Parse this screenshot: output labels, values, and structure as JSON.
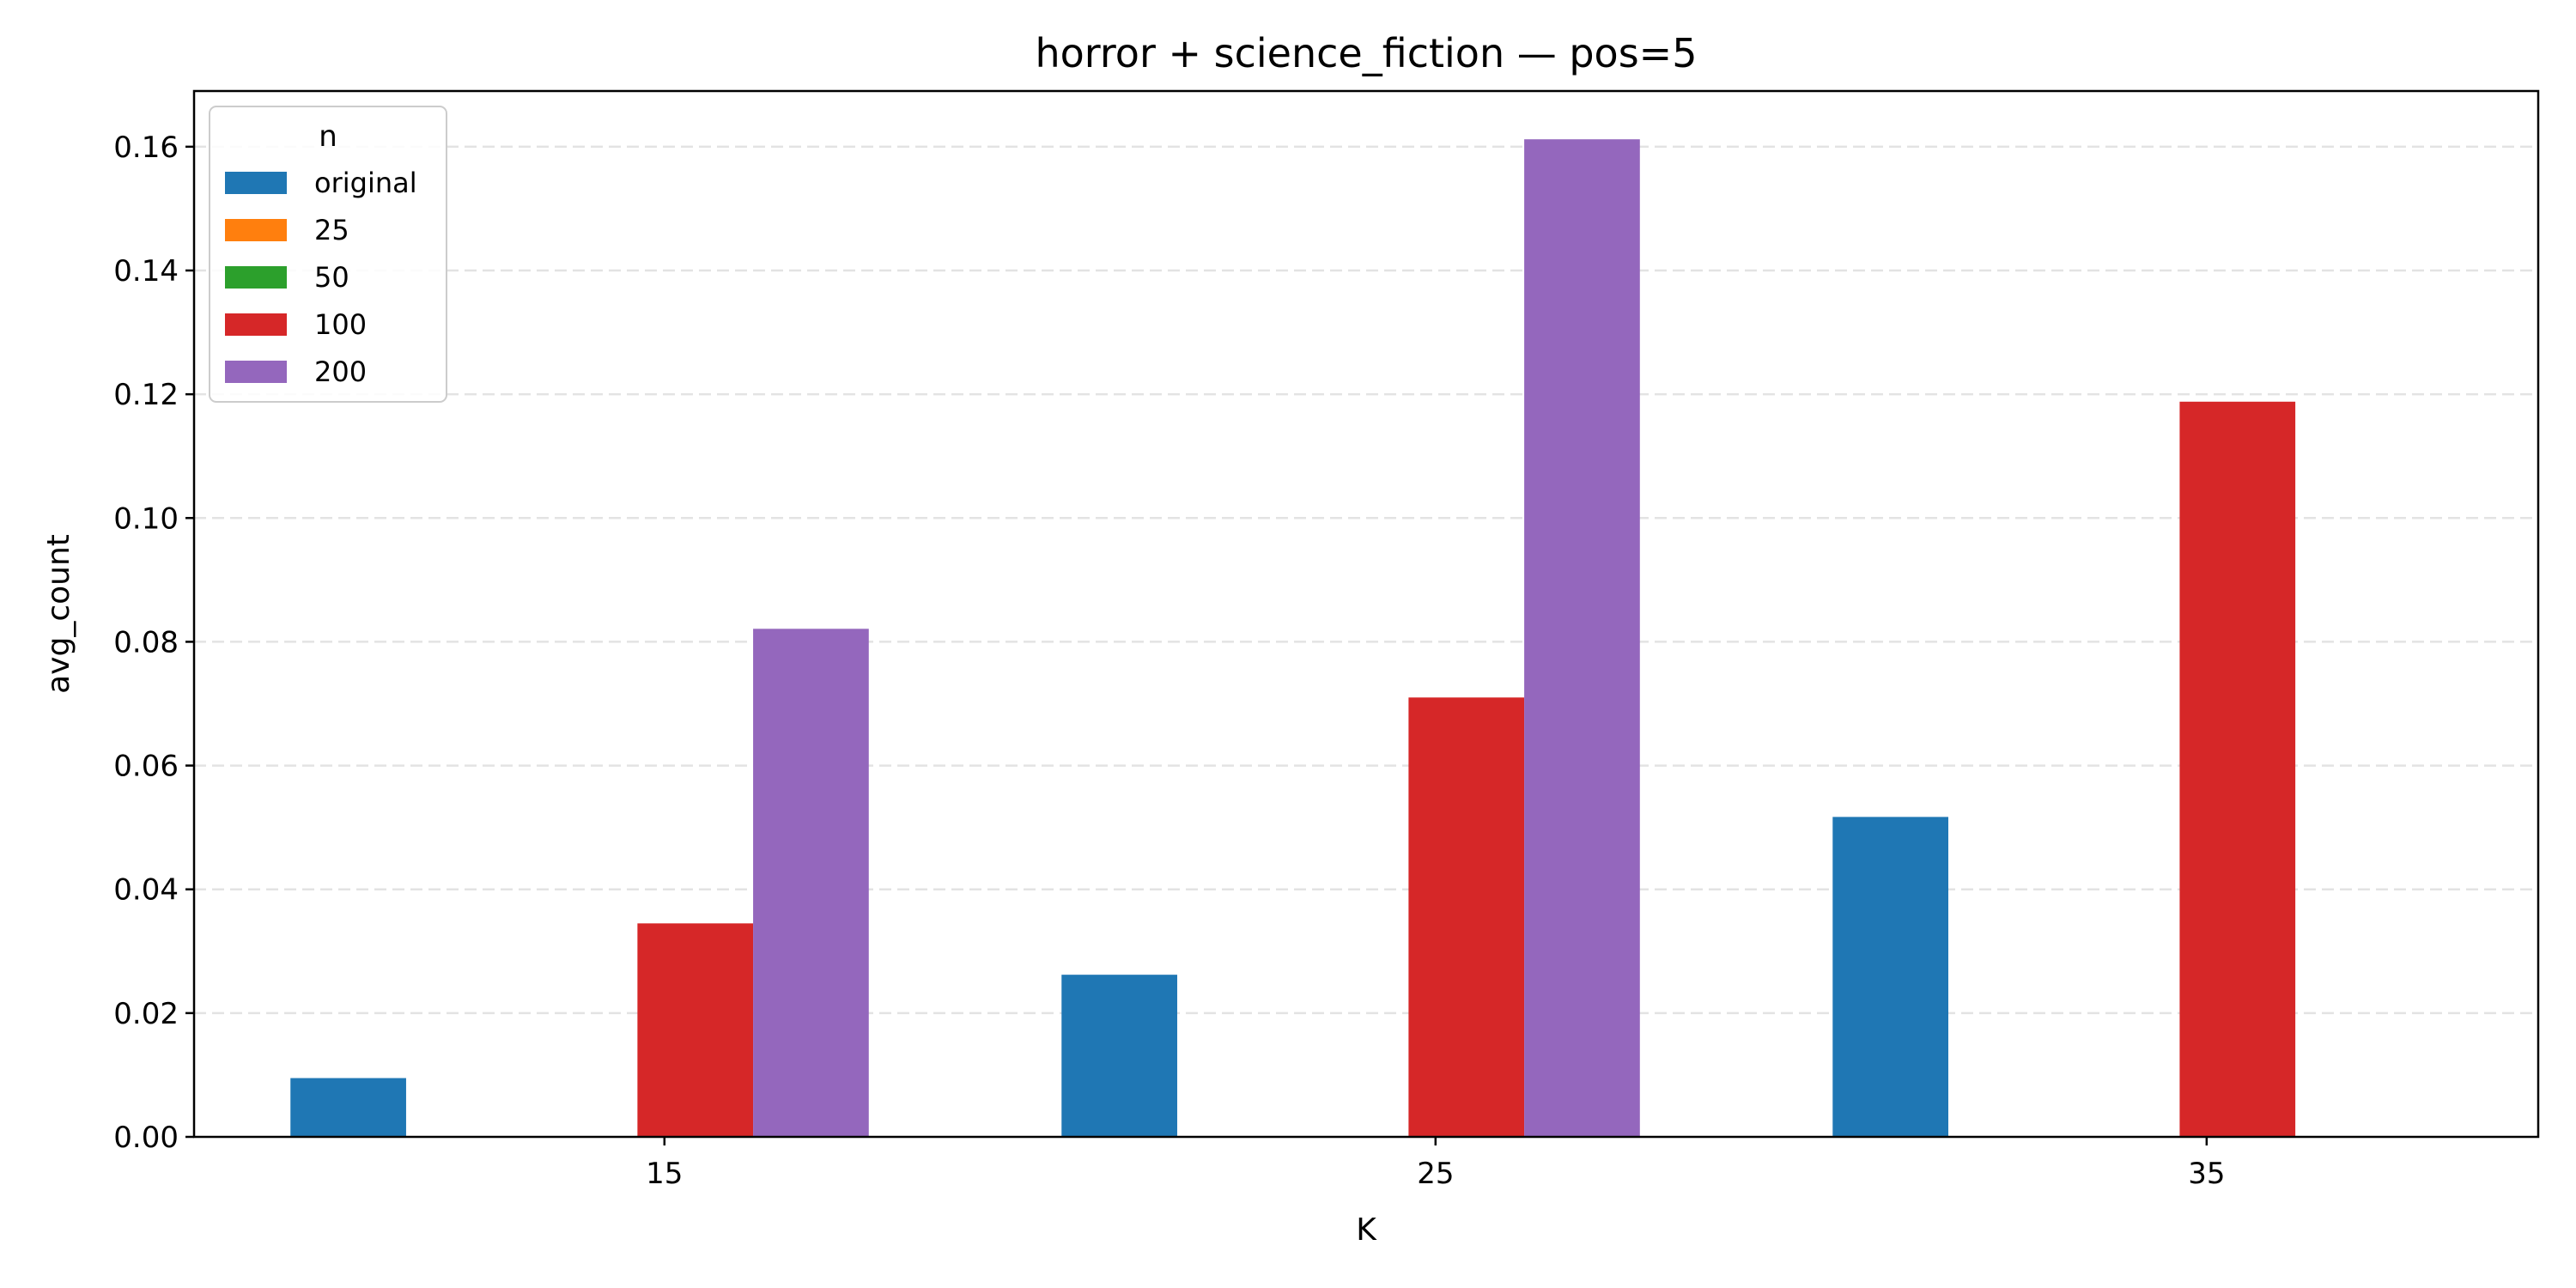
{
  "chart_data": {
    "type": "bar",
    "title": "horror + science_fiction — pos=5",
    "xlabel": "K",
    "ylabel": "avg_count",
    "categories": [
      "15",
      "25",
      "35"
    ],
    "series": [
      {
        "name": "original",
        "color": "#1f77b4",
        "values": [
          0.0095,
          0.0262,
          0.0517
        ]
      },
      {
        "name": "25",
        "color": "#ff7f0e",
        "values": [
          0,
          0,
          0
        ]
      },
      {
        "name": "50",
        "color": "#2ca02c",
        "values": [
          0,
          0,
          0
        ]
      },
      {
        "name": "100",
        "color": "#d62728",
        "values": [
          0.0345,
          0.071,
          0.1188
        ]
      },
      {
        "name": "200",
        "color": "#9467bd",
        "values": [
          0.0821,
          0.1612,
          0
        ]
      }
    ],
    "ylim": [
      0,
      0.169
    ],
    "yticks": [
      "0.00",
      "0.02",
      "0.04",
      "0.06",
      "0.08",
      "0.10",
      "0.12",
      "0.14",
      "0.16"
    ],
    "grid": "y-dashed",
    "legend": {
      "title": "n",
      "placement": "top-left"
    }
  }
}
